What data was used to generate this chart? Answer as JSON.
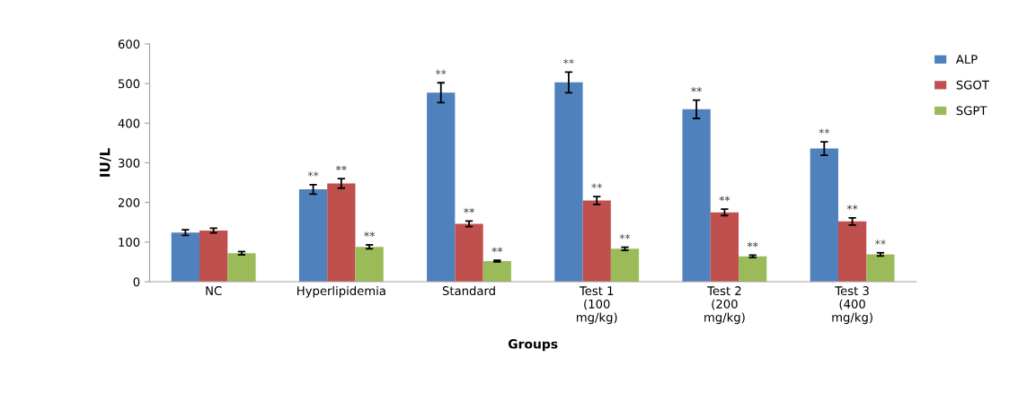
{
  "chart_data": {
    "type": "bar",
    "xlabel": "Groups",
    "ylabel": "IU/L",
    "categories": [
      "NC",
      "Hyperlipidemia",
      "Standard",
      "Test 1\n(100\nmg/kg)",
      "Test 2\n(200\nmg/kg)",
      "Test 3\n(400\nmg/kg)"
    ],
    "series": [
      {
        "name": "ALP",
        "color": "#4f81bd",
        "values": [
          124,
          233,
          477,
          503,
          435,
          336
        ],
        "errors": [
          7,
          12,
          25,
          26,
          23,
          17
        ],
        "value_labels": [
          null,
          "**",
          "**",
          "**",
          "**",
          "**"
        ]
      },
      {
        "name": "SGOT",
        "color": "#c0504d",
        "values": [
          129,
          248,
          146,
          205,
          175,
          152
        ],
        "errors": [
          6,
          12,
          7,
          10,
          8,
          9
        ],
        "value_labels": [
          null,
          "**",
          "**",
          "**",
          "**",
          "**"
        ]
      },
      {
        "name": "SGPT",
        "color": "#9bbb59",
        "values": [
          72,
          88,
          52,
          83,
          64,
          69
        ],
        "errors": [
          4,
          5,
          2,
          4,
          3,
          4
        ],
        "value_labels": [
          null,
          "**",
          "**",
          "**",
          "**",
          "**"
        ]
      }
    ],
    "ylim": [
      0,
      600
    ],
    "yticks": [
      0,
      100,
      200,
      300,
      400,
      500,
      600
    ],
    "grid": false,
    "legend": "top right"
  }
}
